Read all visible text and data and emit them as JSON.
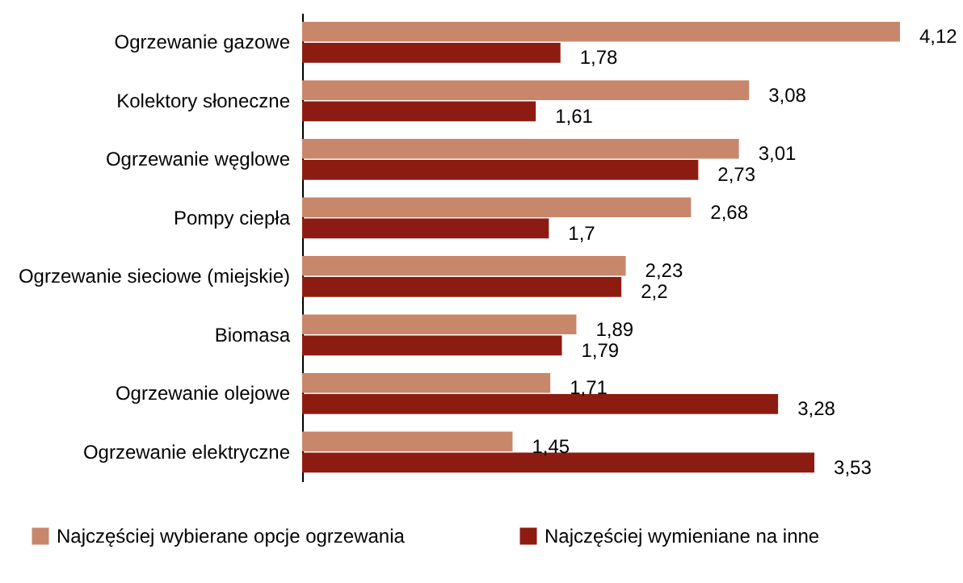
{
  "chart_data": {
    "type": "bar",
    "orientation": "horizontal",
    "legend": "bottom",
    "categories": [
      "Ogrzewanie gazowe",
      "Kolektory słoneczne",
      "Ogrzewanie węglowe",
      "Pompy ciepła",
      "Ogrzewanie sieciowe (miejskie)",
      "Biomasa",
      "Ogrzewanie olejowe",
      "Ogrzewanie elektryczne"
    ],
    "series": [
      {
        "name": "Najczęściej wybierane opcje ogrzewania",
        "color": "#c8876a",
        "values": [
          4.12,
          3.08,
          3.01,
          2.68,
          2.23,
          1.89,
          1.71,
          1.45
        ],
        "value_labels": [
          "4,12",
          "3,08",
          "3,01",
          "2,68",
          "2,23",
          "1,89",
          "1,71",
          "1,45"
        ]
      },
      {
        "name": "Najczęściej wymieniane na inne",
        "color": "#8c1c12",
        "values": [
          1.78,
          1.61,
          2.73,
          1.7,
          2.2,
          1.79,
          3.28,
          3.53
        ],
        "value_labels": [
          "1,78",
          "1,61",
          "2,73",
          "1,7",
          "2,2",
          "1,79",
          "3,28",
          "3,53"
        ]
      }
    ]
  }
}
